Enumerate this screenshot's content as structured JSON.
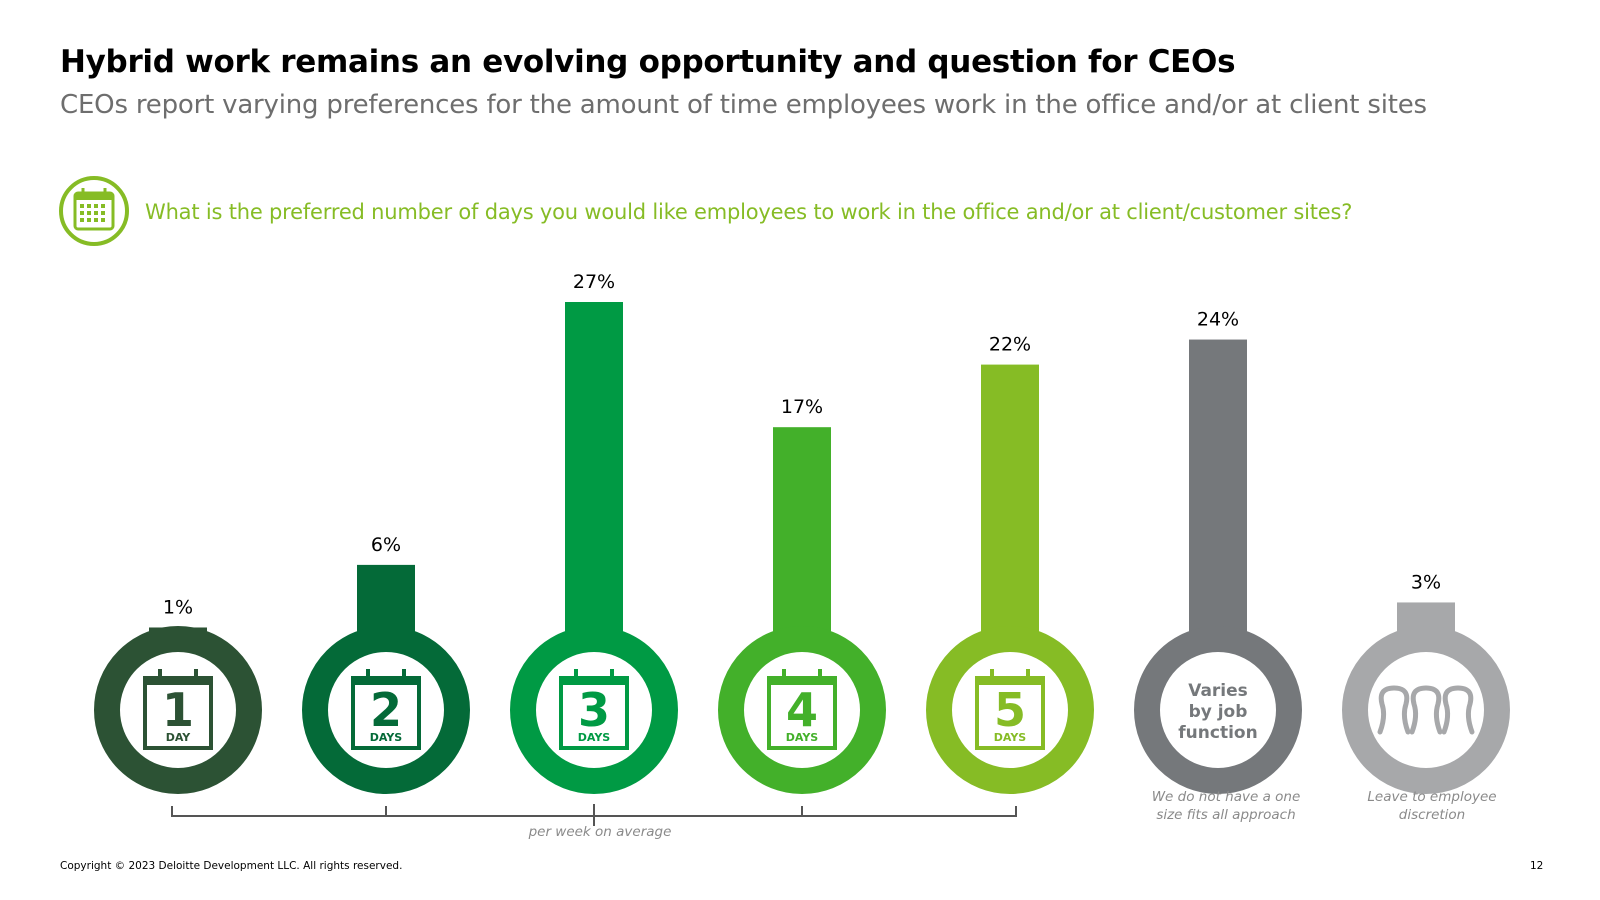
{
  "header": {
    "title": "Hybrid work remains an evolving opportunity and question for CEOs",
    "subtitle": "CEOs report varying preferences for the amount of time employees work in the office and/or at client sites"
  },
  "question": {
    "icon": "calendar-icon",
    "text": "What is the preferred number of days you would like employees to work in the office and/or at client/customer sites?"
  },
  "chart_data": {
    "type": "bar",
    "title": "What is the preferred number of days you would like employees to work in the office and/or at client/customer sites?",
    "ylim": [
      0,
      27
    ],
    "unit": "%",
    "axis_caption": "per week on average",
    "categories": [
      {
        "number": "1",
        "unit_label": "DAY",
        "value": 1,
        "value_label": "1%",
        "color": "#2c5234",
        "icon": "calendar-icon"
      },
      {
        "number": "2",
        "unit_label": "DAYS",
        "value": 6,
        "value_label": "6%",
        "color": "#046a38",
        "icon": "calendar-icon"
      },
      {
        "number": "3",
        "unit_label": "DAYS",
        "value": 27,
        "value_label": "27%",
        "color": "#009a44",
        "icon": "calendar-icon"
      },
      {
        "number": "4",
        "unit_label": "DAYS",
        "value": 17,
        "value_label": "17%",
        "color": "#43b02a",
        "icon": "calendar-icon"
      },
      {
        "number": "5",
        "unit_label": "DAYS",
        "value": 22,
        "value_label": "22%",
        "color": "#86bc25",
        "icon": "calendar-icon"
      },
      {
        "text_lines": [
          "Varies",
          "by job",
          "function"
        ],
        "value": 24,
        "value_label": "24%",
        "color": "#75787b",
        "caption": "We do not have a one size fits all approach"
      },
      {
        "value": 3,
        "value_label": "3%",
        "color": "#a7a8aa",
        "icon": "people-icon",
        "caption": "Leave to employee discretion"
      }
    ]
  },
  "footer": {
    "copyright": "Copyright © 2023 Deloitte Development LLC. All rights reserved.",
    "page_number": "12"
  }
}
